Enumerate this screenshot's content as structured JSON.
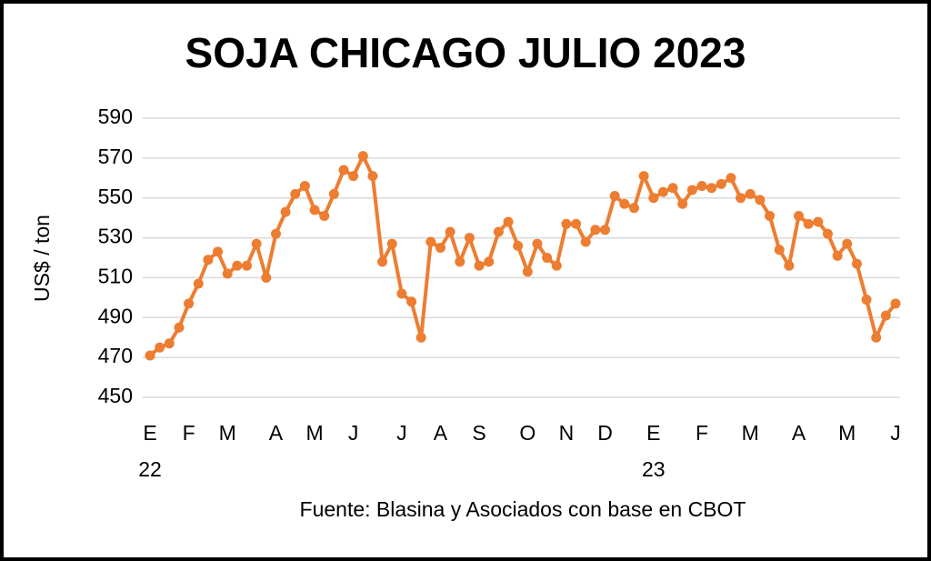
{
  "chart_data": {
    "type": "line",
    "title": "SOJA CHICAGO JULIO 2023",
    "y_label": "US$ / ton",
    "source": "Fuente: Blasina y Asociados con base en CBOT",
    "categories": [
      "E",
      null,
      null,
      null,
      "F",
      null,
      null,
      null,
      "M",
      null,
      null,
      null,
      null,
      "A",
      null,
      null,
      null,
      "M",
      null,
      null,
      null,
      "J",
      null,
      null,
      null,
      null,
      "J",
      null,
      null,
      null,
      "A",
      null,
      null,
      null,
      "S",
      null,
      null,
      null,
      null,
      "O",
      null,
      null,
      null,
      "N",
      null,
      null,
      null,
      "D",
      null,
      null,
      null,
      null,
      "E",
      null,
      null,
      null,
      null,
      "F",
      null,
      null,
      null,
      null,
      "M",
      null,
      null,
      null,
      null,
      "A",
      null,
      null,
      null,
      null,
      "M",
      null,
      null,
      null,
      null,
      "J"
    ],
    "year_labels": [
      "22",
      null,
      null,
      null,
      null,
      null,
      null,
      null,
      null,
      null,
      null,
      null,
      null,
      null,
      null,
      null,
      null,
      null,
      null,
      null,
      null,
      null,
      null,
      null,
      null,
      null,
      null,
      null,
      null,
      null,
      null,
      null,
      null,
      null,
      null,
      null,
      null,
      null,
      null,
      null,
      null,
      null,
      null,
      null,
      null,
      null,
      null,
      null,
      null,
      null,
      null,
      null,
      "23",
      null,
      null,
      null,
      null,
      null,
      null,
      null,
      null,
      null,
      null,
      null,
      null,
      null,
      null,
      null,
      null,
      null,
      null,
      null,
      null,
      null,
      null,
      null,
      null,
      null
    ],
    "values": [
      471,
      475,
      477,
      485,
      497,
      507,
      519,
      523,
      512,
      516,
      516,
      527,
      510,
      532,
      543,
      552,
      556,
      544,
      541,
      552,
      564,
      561,
      571,
      561,
      518,
      527,
      502,
      498,
      480,
      528,
      525,
      533,
      518,
      530,
      516,
      518,
      533,
      538,
      526,
      513,
      527,
      520,
      516,
      537,
      537,
      528,
      534,
      534,
      551,
      547,
      545,
      561,
      550,
      553,
      555,
      547,
      554,
      556,
      555,
      557,
      560,
      550,
      552,
      549,
      541,
      524,
      516,
      541,
      537,
      538,
      532,
      521,
      527,
      517,
      499,
      480,
      491,
      497
    ],
    "color": "#ED7D31",
    "ylim": [
      450,
      590
    ],
    "yticks": [
      450,
      470,
      490,
      510,
      530,
      550,
      570,
      590
    ],
    "grid": true
  }
}
